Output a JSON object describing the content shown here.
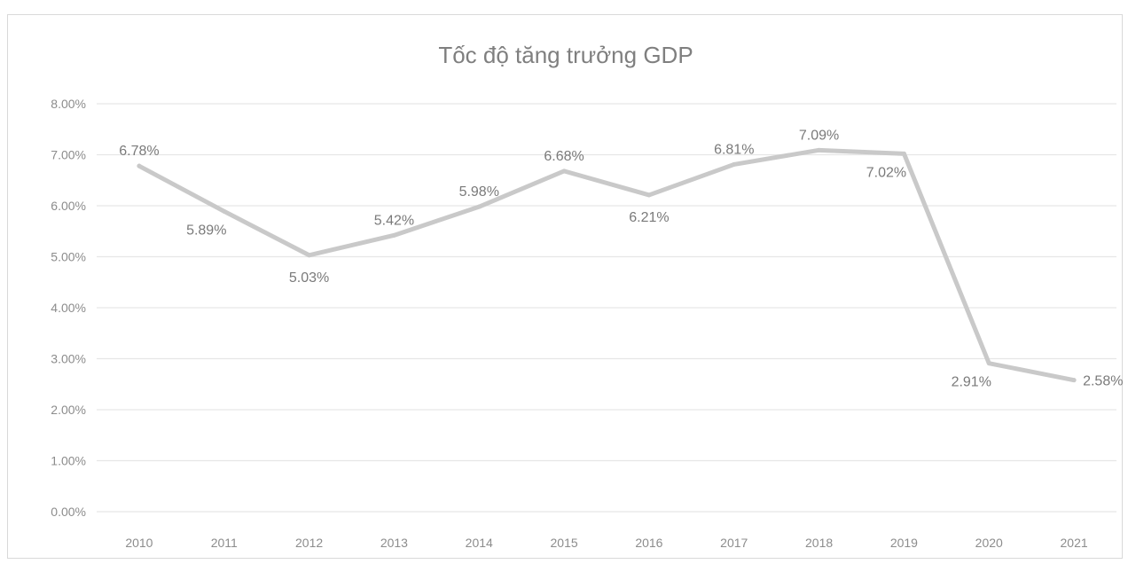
{
  "chart_data": {
    "type": "line",
    "title": "Tốc độ tăng trưởng GDP",
    "categories": [
      "2010",
      "2011",
      "2012",
      "2013",
      "2014",
      "2015",
      "2016",
      "2017",
      "2018",
      "2019",
      "2020",
      "2021"
    ],
    "series": [
      {
        "values": [
          6.78,
          5.89,
          5.03,
          5.42,
          5.98,
          6.68,
          6.21,
          6.81,
          7.09,
          7.02,
          2.91,
          2.58
        ],
        "labels": [
          "6.78%",
          "5.89%",
          "5.03%",
          "5.42%",
          "5.98%",
          "6.68%",
          "6.21%",
          "6.81%",
          "7.09%",
          "7.02%",
          "2.91%",
          "2.58%"
        ]
      }
    ],
    "yticks": [
      "0.00%",
      "1.00%",
      "2.00%",
      "3.00%",
      "4.00%",
      "5.00%",
      "6.00%",
      "7.00%",
      "8.00%"
    ],
    "ylim": [
      0,
      8
    ],
    "grid": true,
    "legend": "none",
    "line_color": "#c9c9c9"
  }
}
